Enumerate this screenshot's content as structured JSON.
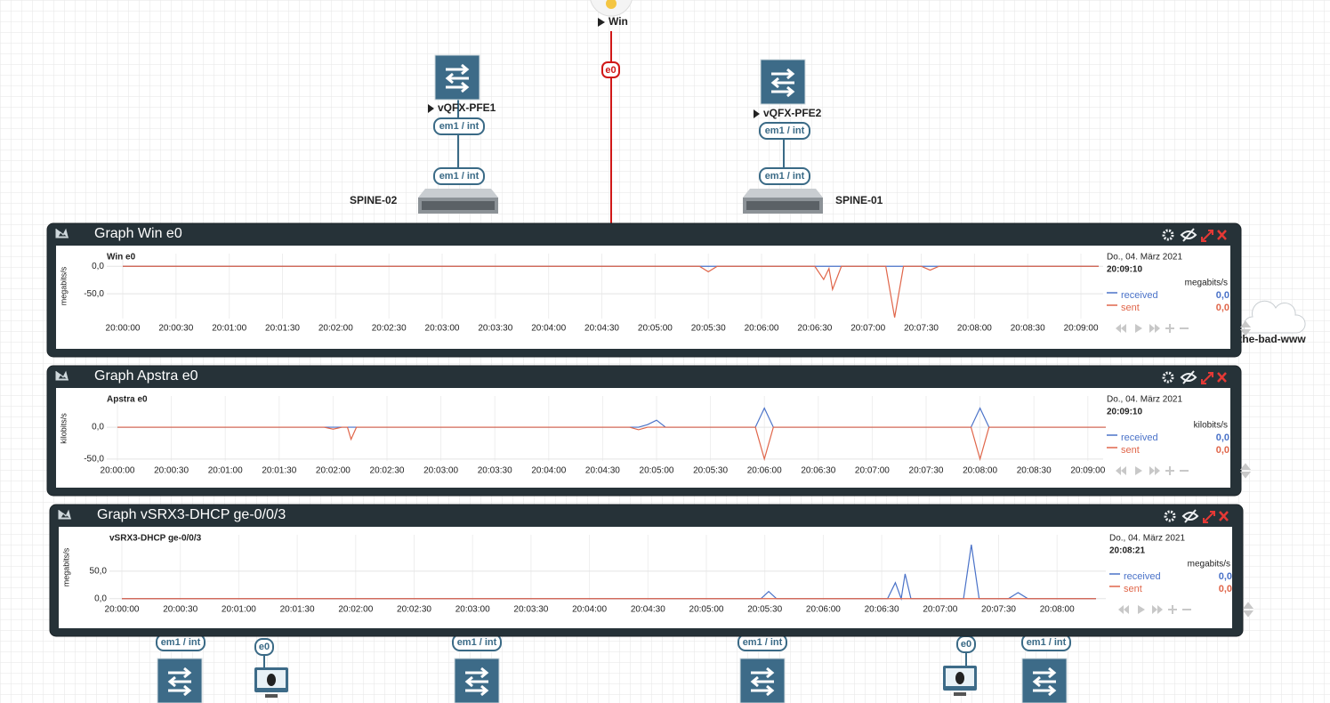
{
  "topology": {
    "nodes": [
      {
        "label": "Win"
      },
      {
        "label": "vQFX-PFE1"
      },
      {
        "label": "vQFX-PFE2"
      },
      {
        "label": "SPINE-02"
      },
      {
        "label": "SPINE-01"
      },
      {
        "label": "the-bad-www"
      }
    ],
    "interfaces": [
      "e0",
      "em1 / int",
      "em1 / int",
      "em1 / int",
      "em1 / int",
      "em1 / int",
      "e0",
      "em1 / int",
      "em1 / int",
      "e0",
      "em1 / int"
    ]
  },
  "chart_data": [
    {
      "type": "line",
      "window_title": "Graph Win e0",
      "title": "Win e0",
      "y_label": "megabits/s",
      "date": "Do., 04. März 2021",
      "time": "20:09:10",
      "x": [
        "20:00:00",
        "20:05:25",
        "20:05:30",
        "20:05:35",
        "20:06:30",
        "20:06:35",
        "20:06:38",
        "20:06:40",
        "20:06:45",
        "20:07:10",
        "20:07:15",
        "20:07:20",
        "20:07:30",
        "20:07:35",
        "20:07:40",
        "20:09:10"
      ],
      "xlim": [
        "20:00:00",
        "20:09:10"
      ],
      "xticks": [
        "20:00:00",
        "20:00:30",
        "20:01:00",
        "20:01:30",
        "20:02:00",
        "20:02:30",
        "20:03:00",
        "20:03:30",
        "20:04:00",
        "20:04:30",
        "20:05:00",
        "20:05:30",
        "20:06:00",
        "20:06:30",
        "20:07:00",
        "20:07:30",
        "20:08:00",
        "20:08:30",
        "20:09:00"
      ],
      "ylim": [
        -95,
        23
      ],
      "yticks": [
        {
          "value": 0,
          "label": "0,0"
        },
        {
          "value": -50,
          "label": "-50,0"
        }
      ],
      "grid": true,
      "series": [
        {
          "name": "received",
          "color": "#4a72c8",
          "current": "0,0",
          "values": [
            0,
            0,
            0,
            0,
            0,
            0,
            0,
            0,
            0,
            0,
            0,
            0,
            0,
            0,
            0,
            0
          ]
        },
        {
          "name": "sent",
          "color": "#e0664a",
          "current": "0,0",
          "values": [
            0,
            0,
            -10,
            0,
            0,
            -24,
            -4,
            -42,
            0,
            0,
            -93,
            0,
            0,
            -7,
            0,
            0
          ]
        }
      ]
    },
    {
      "type": "line",
      "window_title": "Graph Apstra e0",
      "title": "Apstra e0",
      "y_label": "kilobits/s",
      "date": "Do., 04. März 2021",
      "time": "20:09:10",
      "x": [
        "20:00:00",
        "20:01:55",
        "20:02:00",
        "20:02:05",
        "20:02:08",
        "20:02:10",
        "20:02:13",
        "20:04:45",
        "20:04:50",
        "20:04:55",
        "20:05:00",
        "20:05:05",
        "20:05:55",
        "20:06:00",
        "20:06:05",
        "20:07:55",
        "20:08:00",
        "20:08:05",
        "20:09:10"
      ],
      "xlim": [
        "20:00:00",
        "20:09:10"
      ],
      "xticks": [
        "20:00:00",
        "20:00:30",
        "20:01:00",
        "20:01:30",
        "20:02:00",
        "20:02:30",
        "20:03:00",
        "20:03:30",
        "20:04:00",
        "20:04:30",
        "20:05:00",
        "20:05:30",
        "20:06:00",
        "20:06:30",
        "20:07:00",
        "20:07:30",
        "20:08:00",
        "20:08:30",
        "20:09:00"
      ],
      "ylim": [
        -53,
        49
      ],
      "yticks": [
        {
          "value": 0,
          "label": "0,0"
        },
        {
          "value": -50,
          "label": "-50,0"
        }
      ],
      "grid": true,
      "series": [
        {
          "name": "received",
          "color": "#4a72c8",
          "current": "0,0",
          "values": [
            0,
            0,
            0,
            0,
            0,
            0,
            0,
            0,
            0,
            4,
            11,
            0,
            0,
            30,
            0,
            0,
            30,
            0,
            0
          ]
        },
        {
          "name": "sent",
          "color": "#e0664a",
          "current": "0,0",
          "values": [
            0,
            0,
            -3,
            0,
            0,
            -19,
            0,
            0,
            -4,
            0,
            0,
            0,
            0,
            -50,
            0,
            0,
            -50,
            0,
            0
          ]
        }
      ]
    },
    {
      "type": "line",
      "window_title": "Graph vSRX3-DHCP ge-0/0/3",
      "title": "vSRX3-DHCP ge-0/0/3",
      "y_label": "megabits/s",
      "date": "Do., 04. März 2021",
      "time": "20:08:21",
      "x": [
        "20:00:00",
        "20:05:28",
        "20:05:32",
        "20:05:36",
        "20:06:33",
        "20:06:37",
        "20:06:40",
        "20:06:42",
        "20:06:45",
        "20:07:12",
        "20:07:16",
        "20:07:20",
        "20:07:35",
        "20:07:40",
        "20:07:45",
        "20:08:20"
      ],
      "xlim": [
        "20:00:00",
        "20:08:20"
      ],
      "xticks": [
        "20:00:00",
        "20:00:30",
        "20:01:00",
        "20:01:30",
        "20:02:00",
        "20:02:30",
        "20:03:00",
        "20:03:30",
        "20:04:00",
        "20:04:30",
        "20:05:00",
        "20:05:30",
        "20:06:00",
        "20:06:30",
        "20:07:00",
        "20:07:30",
        "20:08:00"
      ],
      "ylim": [
        -2,
        116
      ],
      "yticks": [
        {
          "value": 0,
          "label": "0,0"
        },
        {
          "value": 50,
          "label": "50,0"
        }
      ],
      "grid": true,
      "series": [
        {
          "name": "received",
          "color": "#4a72c8",
          "current": "0,0",
          "values": [
            0,
            0,
            13,
            0,
            0,
            29,
            0,
            45,
            0,
            0,
            98,
            0,
            0,
            11,
            0,
            0
          ]
        },
        {
          "name": "sent",
          "color": "#e0664a",
          "current": "0,0",
          "values": [
            0,
            0,
            0,
            0,
            0,
            0,
            0,
            0,
            0,
            0,
            0,
            0,
            0,
            0,
            0,
            0
          ]
        }
      ]
    }
  ]
}
